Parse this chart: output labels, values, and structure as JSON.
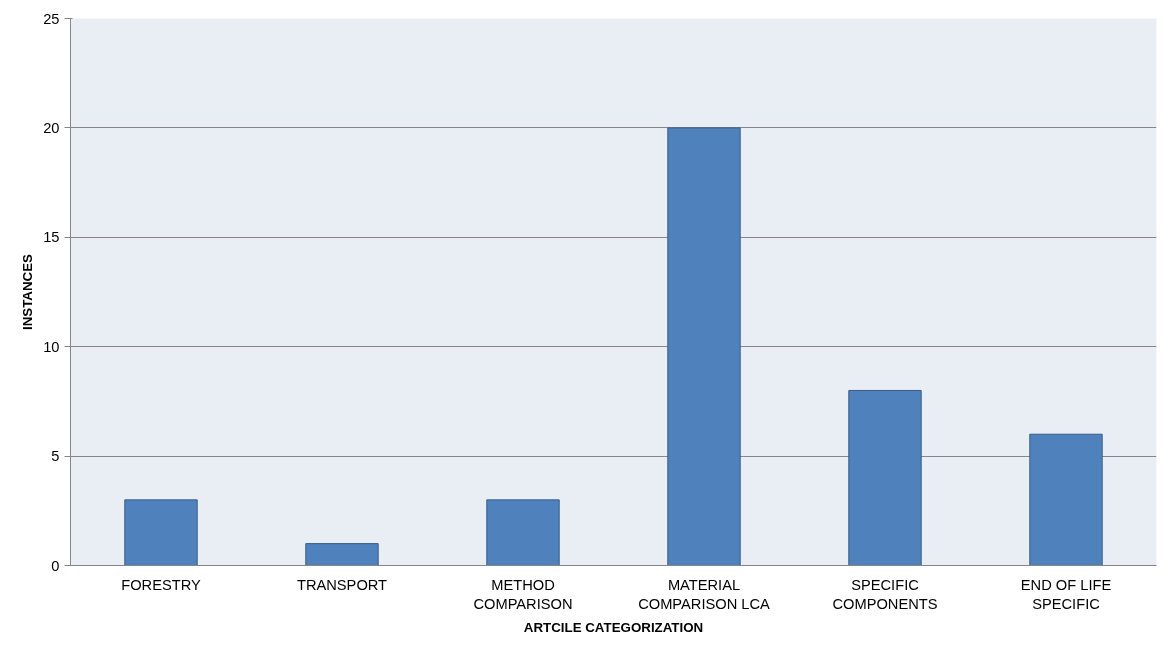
{
  "chart_data": {
    "type": "bar",
    "xlabel": "ARTCILE CATEGORIZATION",
    "ylabel": "INSTANCES",
    "categories": [
      "FORESTRY",
      "TRANSPORT",
      "METHOD\nCOMPARISON",
      "MATERIAL\nCOMPARISON LCA",
      "SPECIFIC\nCOMPONENTS",
      "END OF LIFE\nSPECIFIC"
    ],
    "values": [
      3,
      1,
      3,
      20,
      8,
      6
    ],
    "color": "#4f81bd",
    "ylim": [
      0,
      25
    ],
    "yticks": [
      0,
      5,
      10,
      15,
      20,
      25
    ],
    "grid": "y"
  }
}
